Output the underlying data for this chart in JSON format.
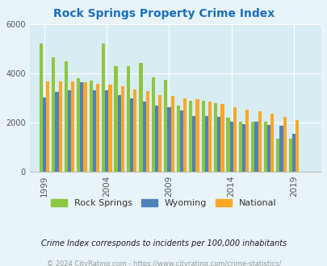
{
  "title": "Rock Springs Property Crime Index",
  "title_color": "#1a6fba",
  "years": [
    1999,
    2000,
    2001,
    2002,
    2003,
    2004,
    2005,
    2006,
    2007,
    2008,
    2009,
    2010,
    2011,
    2012,
    2013,
    2014,
    2015,
    2016,
    2017,
    2018,
    2019,
    2020
  ],
  "rock_springs": [
    5200,
    4650,
    4480,
    3780,
    3700,
    5200,
    4300,
    4300,
    4420,
    3820,
    3720,
    2680,
    2870,
    2880,
    2780,
    2180,
    2020,
    2020,
    2020,
    1340,
    1340,
    null
  ],
  "wyoming": [
    3020,
    3250,
    3300,
    3620,
    3310,
    3320,
    3120,
    2960,
    2850,
    2680,
    2600,
    2470,
    2270,
    2260,
    2210,
    2010,
    1930,
    2010,
    1900,
    1870,
    1550,
    null
  ],
  "national": [
    3680,
    3680,
    3680,
    3630,
    3580,
    3530,
    3460,
    3340,
    3260,
    3100,
    3060,
    2970,
    2940,
    2860,
    2740,
    2600,
    2510,
    2450,
    2360,
    2220,
    2100,
    null
  ],
  "rock_springs_color": "#8dc63f",
  "wyoming_color": "#4f81bd",
  "national_color": "#f9a825",
  "bg_color": "#e8f4f8",
  "plot_bg": "#d8ecf3",
  "ylim": [
    0,
    6000
  ],
  "yticks": [
    0,
    2000,
    4000,
    6000
  ],
  "xtick_labels": [
    "1999",
    "2004",
    "2009",
    "2014",
    "2019"
  ],
  "xtick_positions": [
    1999,
    2004,
    2009,
    2014,
    2019
  ],
  "legend_labels": [
    "Rock Springs",
    "Wyoming",
    "National"
  ],
  "note": "Crime Index corresponds to incidents per 100,000 inhabitants",
  "footer": "© 2024 CityRating.com - https://www.cityrating.com/crime-statistics/",
  "note_color": "#1a1a2e",
  "footer_color": "#999999"
}
